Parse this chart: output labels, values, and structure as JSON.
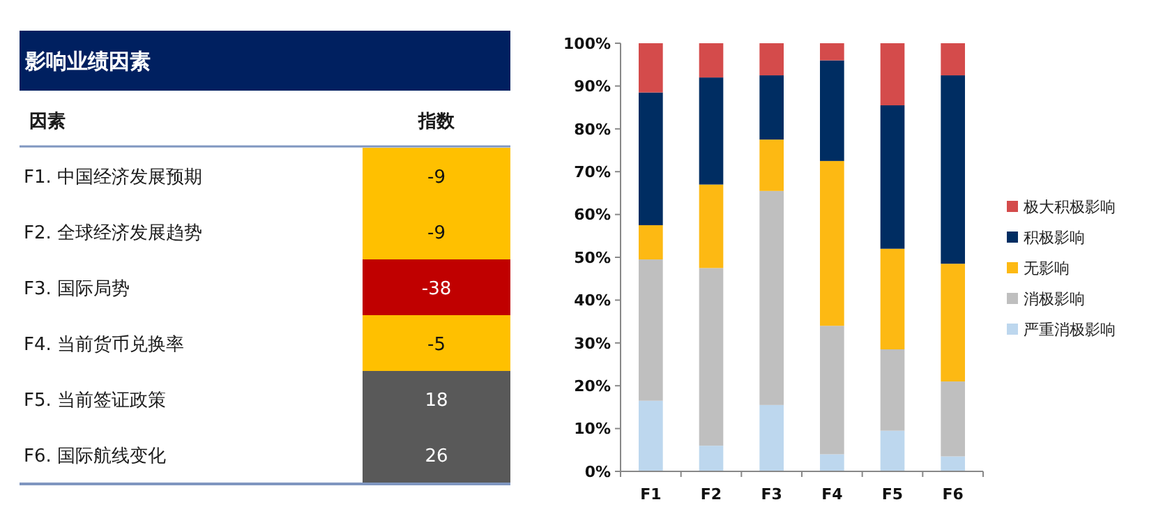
{
  "chart_data": [
    {
      "type": "heatmap",
      "title": "影响业绩因素",
      "ylabel": "因素",
      "categories": [
        "指数"
      ],
      "y_categories": [
        "F1. 中国经济发展预期",
        "F2. 全球经济发展趋势",
        "F3. 国际局势",
        "F4. 当前货币兑换率",
        "F5. 当前签证政策",
        "F6. 国际航线变化"
      ],
      "cells": [
        [
          -9
        ],
        [
          -9
        ],
        [
          -38
        ],
        [
          -5
        ],
        [
          18
        ],
        [
          26
        ]
      ],
      "data_labels": true,
      "colors": [
        "#ffc000",
        "#ffc000",
        "#c00000",
        "#ffc000",
        "#595959",
        "#595959"
      ]
    },
    {
      "type": "bar",
      "stacked": true,
      "categories": [
        "F1",
        "F2",
        "F3",
        "F4",
        "F5",
        "F6"
      ],
      "ylim": [
        0,
        100
      ],
      "yticks": [
        {
          "value": 0,
          "label": "0%"
        },
        {
          "value": 10,
          "label": "10%"
        },
        {
          "value": 20,
          "label": "20%"
        },
        {
          "value": 30,
          "label": "30%"
        },
        {
          "value": 40,
          "label": "40%"
        },
        {
          "value": 50,
          "label": "50%"
        },
        {
          "value": 60,
          "label": "60%"
        },
        {
          "value": 70,
          "label": "70%"
        },
        {
          "value": 80,
          "label": "80%"
        },
        {
          "value": 90,
          "label": "90%"
        },
        {
          "value": 100,
          "label": "100%"
        }
      ],
      "legend": "right",
      "series": [
        {
          "name": "严重消极影响",
          "color": "#bdd7ee",
          "values": [
            16.5,
            6,
            15.5,
            4,
            9.5,
            3.5
          ]
        },
        {
          "name": "消极影响",
          "color": "#bfbfbf",
          "values": [
            33,
            41.5,
            50,
            30,
            19,
            17.5
          ]
        },
        {
          "name": "无影响",
          "color": "#fdb913",
          "values": [
            8,
            19.5,
            12,
            38.5,
            23.5,
            27.5
          ]
        },
        {
          "name": "积极影响",
          "color": "#002d62",
          "values": [
            31,
            25,
            15,
            23.5,
            33.5,
            44
          ]
        },
        {
          "name": "极大积极影响",
          "color": "#d44b4b",
          "values": [
            11.5,
            8,
            7.5,
            4,
            14.5,
            7.5
          ]
        }
      ]
    }
  ]
}
